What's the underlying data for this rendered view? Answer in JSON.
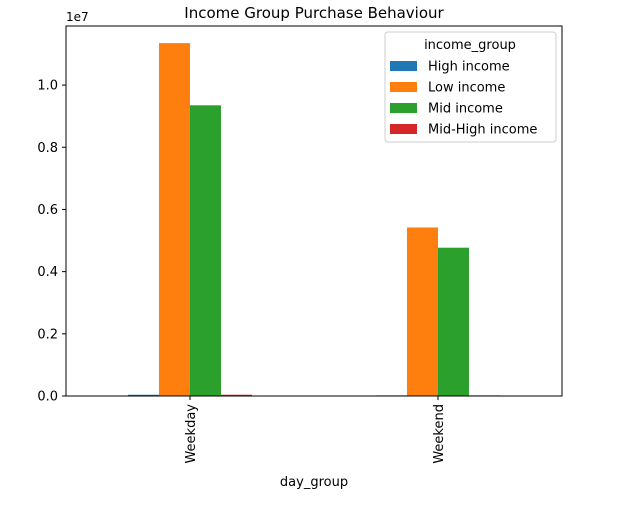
{
  "chart_data": {
    "type": "bar",
    "title": "Income Group Purchase Behaviour",
    "xlabel": "day_group",
    "ylabel": "",
    "categories": [
      "Weekday",
      "Weekend"
    ],
    "ylim": [
      0,
      11900000
    ],
    "y_ticks": [
      0,
      2000000,
      4000000,
      6000000,
      8000000,
      10000000
    ],
    "y_tick_labels": [
      "0.0",
      "0.2",
      "0.4",
      "0.6",
      "0.8",
      "1.0"
    ],
    "y_offset_label": "1e7",
    "legend_title": "income_group",
    "legend_position": "top-right",
    "grid": false,
    "series": [
      {
        "name": "High income",
        "color": "#1f77b4",
        "values": [
          40000,
          20000
        ]
      },
      {
        "name": "Low income",
        "color": "#ff7f0e",
        "values": [
          11350000,
          5420000
        ]
      },
      {
        "name": "Mid income",
        "color": "#2ca02c",
        "values": [
          9350000,
          4770000
        ]
      },
      {
        "name": "Mid-High income",
        "color": "#d62728",
        "values": [
          40000,
          20000
        ]
      }
    ]
  }
}
